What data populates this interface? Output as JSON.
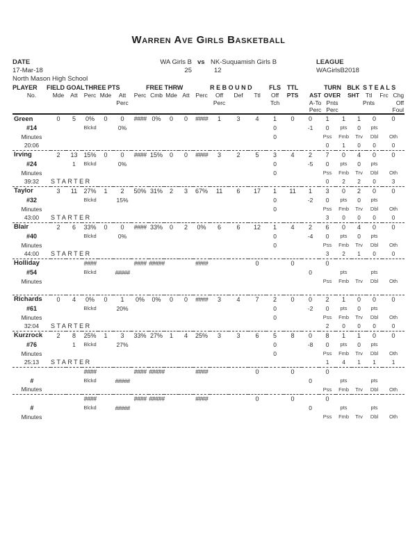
{
  "title": "Warren Ave Girls Basketball",
  "meta": {
    "date_label": "DATE",
    "date": "17-Mar-18",
    "venue": "North Mason High School",
    "home_team": "WA Girls B",
    "vs_label": "vs",
    "away_team": "NK-Suquamish Girls B",
    "home_score": "25",
    "away_score": "12",
    "league_label": "LEAGUE",
    "league": "WAGirlsB2018"
  },
  "table": {
    "groups": {
      "player": "PLAYER",
      "field_goal": "FIELD GOAL",
      "three_pts": "THREE PTS",
      "free_thrw": "FREE THRW",
      "rebound": "R E B O U N D",
      "fls": "FLS",
      "ttl": "TTL",
      "turn": "TURN",
      "blk": "BLK",
      "steals": "S T E A L S"
    },
    "sub": {
      "no": "No.",
      "mde": "Mde",
      "att": "Att",
      "perc": "Perc",
      "cmb": "Cmb",
      "off": "Off",
      "def": "Def",
      "ttl": "Ttl",
      "pts": "PTS",
      "ast": "AST",
      "over": "OVER",
      "sht": "SHT",
      "frc": "Frc",
      "chg": "Chg",
      "tch": "Tch",
      "a_to": "A-To",
      "pnts": "Pnts",
      "foul": "Foul"
    },
    "row_labels": {
      "blckd": "Blckd",
      "pts": "pts",
      "pss": "Pss",
      "fmb": "Fmb",
      "trv": "Trv",
      "dbl": "Dbl",
      "oth": "Oth",
      "minutes": "Minutes",
      "starter": "STARTER"
    }
  },
  "players": [
    {
      "name": "Green",
      "number": "#14",
      "minutes": "20:06",
      "starter": "",
      "r1": [
        "0",
        "5",
        "0%",
        "0",
        "0",
        "####",
        "0%",
        "0",
        "0",
        "####",
        "1",
        "3",
        "4",
        "1",
        "0",
        "0",
        "1",
        "1",
        "1",
        "0",
        "0"
      ],
      "r2": {
        "blk": "",
        "tap": "0%",
        "fls": "0",
        "ast": "-1",
        "over": "0",
        "stl": "0"
      },
      "r3_fls": "0",
      "r4": [
        "0",
        "1",
        "0",
        "0",
        "0"
      ]
    },
    {
      "name": "Irving",
      "number": "#24",
      "minutes": "39:32",
      "starter": "STARTER",
      "r1": [
        "2",
        "13",
        "15%",
        "0",
        "0",
        "####",
        "15%",
        "0",
        "0",
        "####",
        "3",
        "2",
        "5",
        "3",
        "4",
        "2",
        "7",
        "0",
        "4",
        "0",
        "0"
      ],
      "r2": {
        "blk": "1",
        "tap": "0%",
        "fls": "0",
        "ast": "-5",
        "over": "0",
        "stl": "0"
      },
      "r3_fls": "0",
      "r4": [
        "0",
        "2",
        "2",
        "0",
        "3"
      ]
    },
    {
      "name": "Taylor",
      "number": "#32",
      "minutes": "43:00",
      "starter": "STARTER",
      "r1": [
        "3",
        "11",
        "27%",
        "1",
        "2",
        "50%",
        "31%",
        "2",
        "3",
        "67%",
        "11",
        "6",
        "17",
        "1",
        "11",
        "1",
        "3",
        "0",
        "2",
        "0",
        "0"
      ],
      "r2": {
        "blk": "",
        "tap": "15%",
        "fls": "0",
        "ast": "-2",
        "over": "0",
        "stl": "0"
      },
      "r3_fls": "0",
      "r4": [
        "3",
        "0",
        "0",
        "0",
        "0"
      ]
    },
    {
      "name": "Blair",
      "number": "#40",
      "minutes": "44:00",
      "starter": "STARTER",
      "r1": [
        "2",
        "6",
        "33%",
        "0",
        "0",
        "####",
        "33%",
        "0",
        "2",
        "0%",
        "6",
        "6",
        "12",
        "1",
        "4",
        "2",
        "6",
        "0",
        "4",
        "0",
        "0"
      ],
      "r2": {
        "blk": "",
        "tap": "0%",
        "fls": "0",
        "ast": "-4",
        "over": "0",
        "stl": "0"
      },
      "r3_fls": "0",
      "r4": [
        "3",
        "2",
        "1",
        "0",
        "0"
      ]
    },
    {
      "name": "Holliday",
      "number": "#54",
      "minutes": "",
      "starter": "",
      "r1": [
        "",
        "",
        "####",
        "",
        "",
        "####",
        "#####",
        "",
        "",
        "####",
        "",
        "",
        "0",
        "",
        "0",
        "",
        "0",
        "",
        "",
        "",
        ""
      ],
      "r2": {
        "blk": "",
        "tap": "#####",
        "fls": "",
        "ast": "0",
        "over": "",
        "stl": ""
      },
      "r3_fls": "",
      "r4": [
        "",
        "",
        "",
        "",
        ""
      ]
    },
    {
      "name": "Richards",
      "number": "#61",
      "minutes": "32:04",
      "starter": "STARTER",
      "r1": [
        "0",
        "4",
        "0%",
        "0",
        "1",
        "0%",
        "0%",
        "0",
        "0",
        "####",
        "3",
        "4",
        "7",
        "2",
        "0",
        "0",
        "2",
        "1",
        "0",
        "0",
        "0"
      ],
      "r2": {
        "blk": "",
        "tap": "20%",
        "fls": "0",
        "ast": "-2",
        "over": "0",
        "stl": "0"
      },
      "r3_fls": "0",
      "r4": [
        "2",
        "0",
        "0",
        "0",
        "0"
      ]
    },
    {
      "name": "Kurzrock",
      "number": "#76",
      "minutes": "25:13",
      "starter": "STARTER",
      "r1": [
        "2",
        "8",
        "25%",
        "1",
        "3",
        "33%",
        "27%",
        "1",
        "4",
        "25%",
        "3",
        "3",
        "6",
        "5",
        "8",
        "0",
        "8",
        "1",
        "1",
        "0",
        "0"
      ],
      "r2": {
        "blk": "1",
        "tap": "27%",
        "fls": "0",
        "ast": "-8",
        "over": "0",
        "stl": "0"
      },
      "r3_fls": "0",
      "r4": [
        "1",
        "4",
        "1",
        "1",
        "1"
      ]
    },
    {
      "name": "",
      "number": "#",
      "minutes": "",
      "starter": "",
      "r1": [
        "",
        "",
        "####",
        "",
        "",
        "####",
        "#####",
        "",
        "",
        "####",
        "",
        "",
        "0",
        "",
        "0",
        "",
        "0",
        "",
        "",
        "",
        ""
      ],
      "r2": {
        "blk": "",
        "tap": "#####",
        "fls": "",
        "ast": "0",
        "over": "",
        "stl": ""
      },
      "r3_fls": "",
      "r4": null
    },
    {
      "name": "",
      "number": "#",
      "minutes": "",
      "starter": "",
      "r1": [
        "",
        "",
        "####",
        "",
        "",
        "####",
        "#####",
        "",
        "",
        "####",
        "",
        "",
        "0",
        "",
        "0",
        "",
        "0",
        "",
        "",
        "",
        ""
      ],
      "r2": {
        "blk": "",
        "tap": "#####",
        "fls": "",
        "ast": "0",
        "over": "",
        "stl": ""
      },
      "r3_fls": "",
      "r4": null
    }
  ]
}
